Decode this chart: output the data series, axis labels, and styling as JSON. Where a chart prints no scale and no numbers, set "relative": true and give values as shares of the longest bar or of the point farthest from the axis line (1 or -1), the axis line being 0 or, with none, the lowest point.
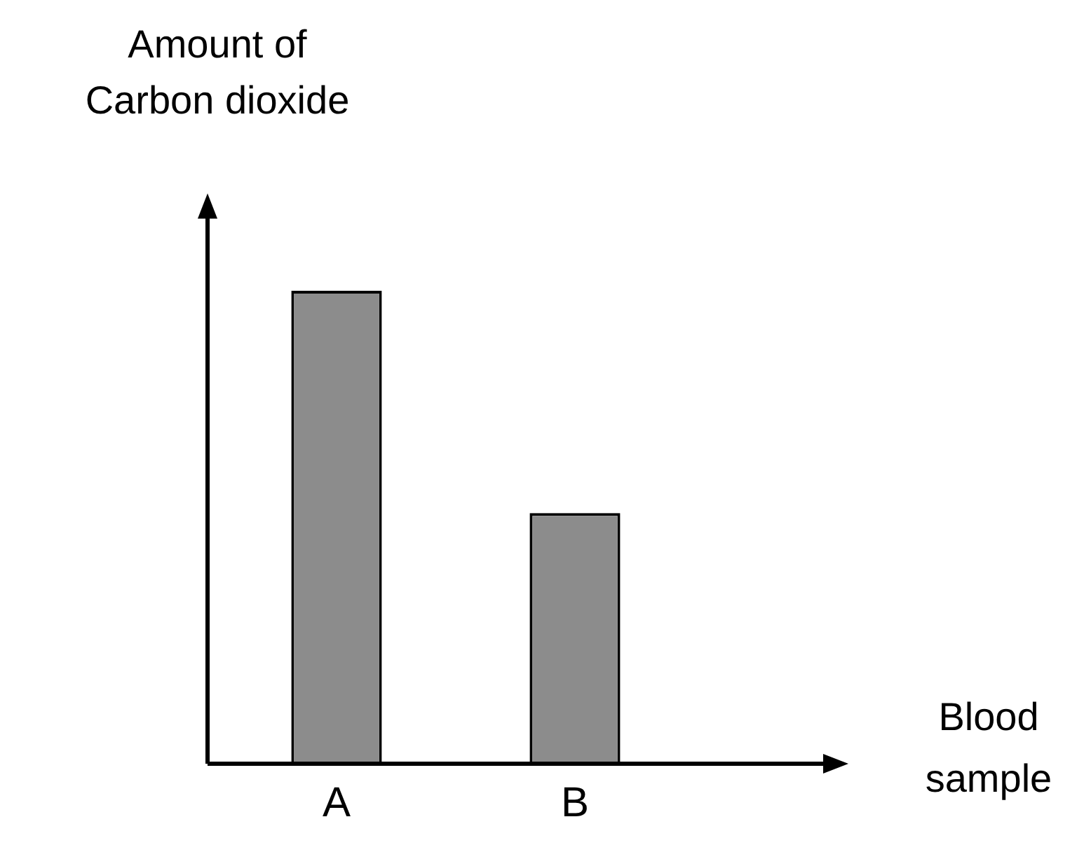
{
  "chart_data": {
    "type": "bar",
    "ylabel": "Amount of\nCarbon dioxide",
    "xlabel": "Blood\nsample",
    "categories": [
      "A",
      "B"
    ],
    "values": [
      1,
      0.53
    ],
    "color": "#8c8c8c",
    "relative": true,
    "grid": false,
    "legend": false
  }
}
